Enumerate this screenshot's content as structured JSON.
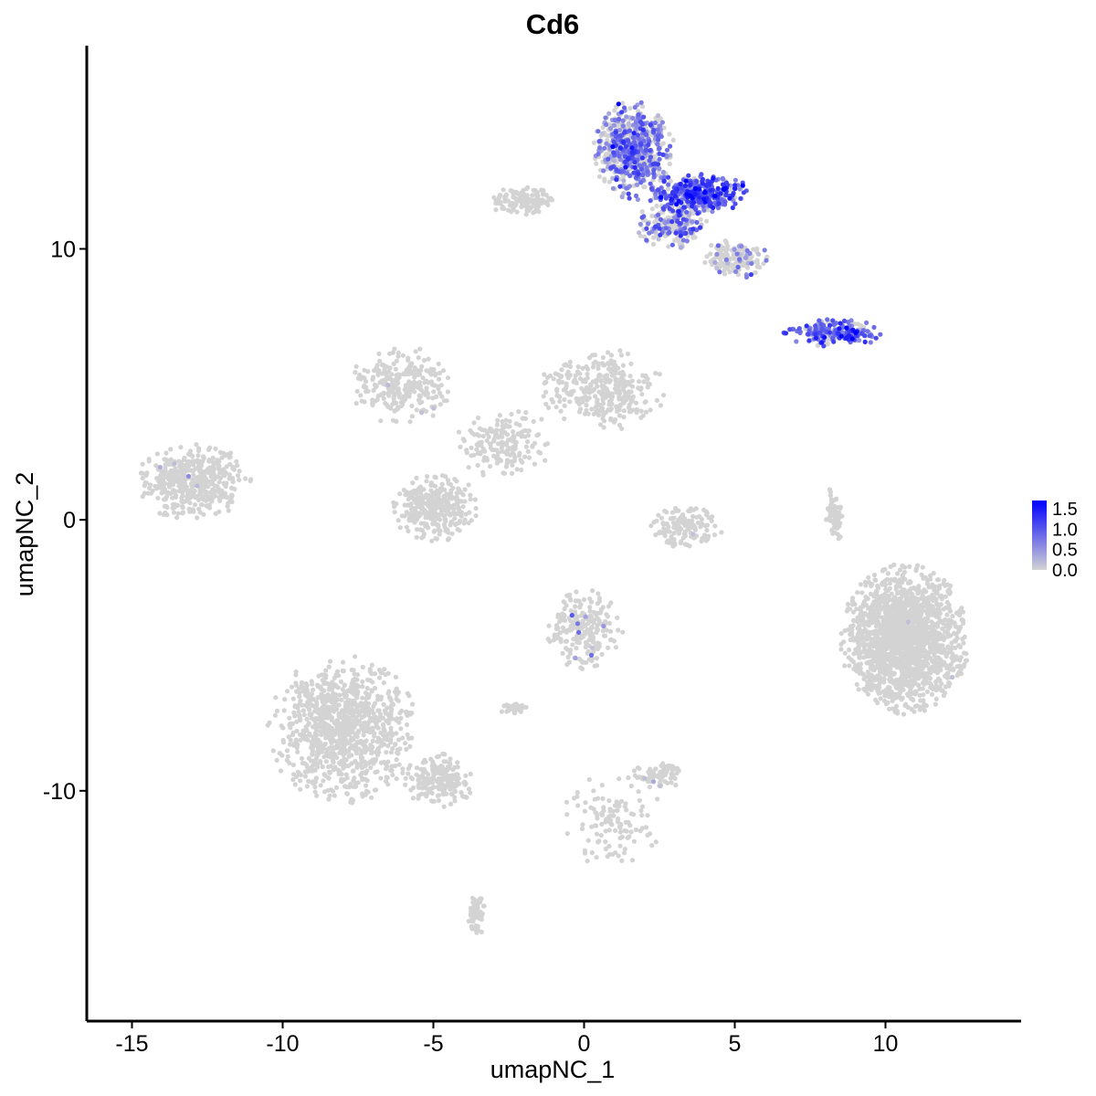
{
  "chart_data": {
    "type": "scatter",
    "title": "Cd6",
    "xlabel": "umapNC_1",
    "ylabel": "umapNC_2",
    "xlim": [
      -16.5,
      14.5
    ],
    "ylim": [
      -18.5,
      17.5
    ],
    "x_ticks": [
      -15,
      -10,
      -5,
      0,
      5,
      10
    ],
    "x_tick_labels": [
      "-15",
      "-10",
      "-5",
      "0",
      "5",
      "10"
    ],
    "y_ticks": [
      -10,
      0,
      10
    ],
    "y_tick_labels": [
      "-10",
      "0",
      "10"
    ],
    "grid": false,
    "legend": {
      "placement": "right",
      "type": "colorbar",
      "min": 0.0,
      "max": 1.7,
      "ticks": [
        1.5,
        1.0,
        0.5,
        0.0
      ],
      "tick_labels": [
        "1.5",
        "1.0",
        "0.5",
        "0.0"
      ],
      "color_low": "#d3d3d3",
      "color_high": "#0000ff"
    },
    "clusters": [
      {
        "name": "top-right-main",
        "x": [
          0.3,
          3.0
        ],
        "y": [
          11.8,
          15.5
        ],
        "n": 700,
        "expr": 0.5,
        "expr_frac": 0.55
      },
      {
        "name": "top-right-arm",
        "x": [
          2.0,
          5.6
        ],
        "y": [
          11.3,
          12.8
        ],
        "n": 350,
        "expr": 0.8,
        "expr_frac": 0.85
      },
      {
        "name": "top-right-lower",
        "x": [
          1.7,
          4.2
        ],
        "y": [
          10.0,
          11.8
        ],
        "n": 220,
        "expr": 0.5,
        "expr_frac": 0.5
      },
      {
        "name": "top-right-tail",
        "x": [
          3.9,
          6.1
        ],
        "y": [
          8.9,
          10.4
        ],
        "n": 160,
        "expr": 0.3,
        "expr_frac": 0.2
      },
      {
        "name": "top-center",
        "x": [
          -3.2,
          -0.8
        ],
        "y": [
          11.2,
          12.3
        ],
        "n": 130,
        "expr": 0,
        "expr_frac": 0.0
      },
      {
        "name": "right-streak",
        "x": [
          6.6,
          10.0
        ],
        "y": [
          6.4,
          7.4
        ],
        "n": 230,
        "expr": 0.7,
        "expr_frac": 0.75
      },
      {
        "name": "left-cluster",
        "x": [
          -15.0,
          -11.0
        ],
        "y": [
          0.0,
          2.8
        ],
        "n": 450,
        "expr": 0,
        "expr_frac": 0.01
      },
      {
        "name": "center-web-left",
        "x": [
          -7.8,
          -4.3
        ],
        "y": [
          3.5,
          6.4
        ],
        "n": 260,
        "expr": 0,
        "expr_frac": 0.01
      },
      {
        "name": "center-web-right",
        "x": [
          -1.5,
          2.8
        ],
        "y": [
          3.3,
          6.3
        ],
        "n": 330,
        "expr": 0,
        "expr_frac": 0.0
      },
      {
        "name": "center-web-bottom",
        "x": [
          -6.4,
          -3.5
        ],
        "y": [
          -0.8,
          1.8
        ],
        "n": 330,
        "expr": 0,
        "expr_frac": 0.0
      },
      {
        "name": "center-web-spine",
        "x": [
          -4.5,
          -1.0
        ],
        "y": [
          1.5,
          4.2
        ],
        "n": 180,
        "expr": 0,
        "expr_frac": 0.0
      },
      {
        "name": "small-center-arc",
        "x": [
          2.2,
          4.6
        ],
        "y": [
          -1.1,
          0.6
        ],
        "n": 140,
        "expr": 0,
        "expr_frac": 0.01
      },
      {
        "name": "right-large",
        "x": [
          8.5,
          12.8
        ],
        "y": [
          -7.2,
          -1.6
        ],
        "n": 1700,
        "expr": 0,
        "expr_frac": 0.002
      },
      {
        "name": "right-thin-arc",
        "x": [
          8.0,
          8.6
        ],
        "y": [
          -1.0,
          1.3
        ],
        "n": 60,
        "expr": 0,
        "expr_frac": 0.0
      },
      {
        "name": "center-lower",
        "x": [
          -1.3,
          1.3
        ],
        "y": [
          -5.5,
          -2.5
        ],
        "n": 230,
        "expr": 0,
        "expr_frac": 0.02
      },
      {
        "name": "bottom-left-large",
        "x": [
          -10.5,
          -5.5
        ],
        "y": [
          -10.5,
          -5.0
        ],
        "n": 1000,
        "expr": 0,
        "expr_frac": 0.0
      },
      {
        "name": "bottom-left-tail",
        "x": [
          -6.0,
          -3.6
        ],
        "y": [
          -10.6,
          -8.6
        ],
        "n": 200,
        "expr": 0,
        "expr_frac": 0.005
      },
      {
        "name": "small-bottom-center",
        "x": [
          1.6,
          3.3
        ],
        "y": [
          -10.0,
          -8.8
        ],
        "n": 80,
        "expr": 0,
        "expr_frac": 0.03
      },
      {
        "name": "bottom-strand",
        "x": [
          -0.8,
          2.6
        ],
        "y": [
          -12.8,
          -9.3
        ],
        "n": 120,
        "expr": 0,
        "expr_frac": 0.0
      },
      {
        "name": "bottom-tail",
        "x": [
          -3.9,
          -3.2
        ],
        "y": [
          -15.3,
          -13.8
        ],
        "n": 60,
        "expr": 0,
        "expr_frac": 0.0
      },
      {
        "name": "small-left-gray",
        "x": [
          -2.8,
          -1.9
        ],
        "y": [
          -7.2,
          -6.7
        ],
        "n": 40,
        "expr": 0,
        "expr_frac": 0.0
      }
    ]
  }
}
